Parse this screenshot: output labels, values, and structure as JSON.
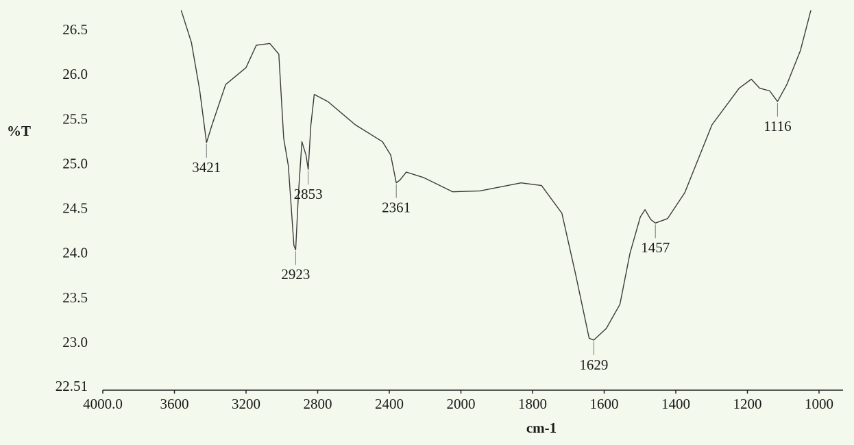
{
  "chart_data": {
    "type": "line",
    "ylabel": "%T",
    "xlabel": "cm-1",
    "x_break": 2000,
    "xlim": [
      4000,
      933
    ],
    "ylim": [
      22.51,
      26.77
    ],
    "xticks": [
      {
        "value": 4000,
        "label": "4000.0"
      },
      3600,
      3200,
      2800,
      2400,
      2000,
      1800,
      1600,
      1400,
      1200,
      1000
    ],
    "yticks": [
      22.51,
      {
        "value": 23,
        "label": "23.0"
      },
      23.5,
      {
        "value": 24,
        "label": "24.0"
      },
      24.5,
      {
        "value": 25,
        "label": "25.0"
      },
      25.5,
      {
        "value": 26,
        "label": "26.0"
      },
      26.5
    ],
    "color": "#3a3a3a",
    "x": [
      3562,
      3505,
      3459,
      3421,
      3390,
      3314,
      3200,
      3143,
      3067,
      3017,
      2990,
      2964,
      2933,
      2923,
      2907,
      2888,
      2865,
      2853,
      2838,
      2819,
      2743,
      2590,
      2438,
      2392,
      2361,
      2341,
      2305,
      2210,
      2046,
      1947,
      1832,
      1775,
      1718,
      1680,
      1642,
      1629,
      1594,
      1556,
      1528,
      1499,
      1486,
      1470,
      1457,
      1423,
      1375,
      1299,
      1223,
      1189,
      1166,
      1138,
      1116,
      1090,
      1052,
      1023
    ],
    "values": [
      26.73,
      26.37,
      25.84,
      25.25,
      25.45,
      25.9,
      26.09,
      26.34,
      26.36,
      26.24,
      25.3,
      24.99,
      24.1,
      24.05,
      24.69,
      25.26,
      25.11,
      24.95,
      25.45,
      25.79,
      25.71,
      25.45,
      25.26,
      25.11,
      24.8,
      24.83,
      24.92,
      24.86,
      24.7,
      24.71,
      24.8,
      24.77,
      24.46,
      23.78,
      23.06,
      23.04,
      23.17,
      23.44,
      24.01,
      24.42,
      24.5,
      24.39,
      24.35,
      24.4,
      24.69,
      25.45,
      25.86,
      25.96,
      25.86,
      25.83,
      25.71,
      25.9,
      26.28,
      26.73
    ],
    "peaks": [
      {
        "x": 3421,
        "y": 25.25
      },
      {
        "x": 2923,
        "y": 24.05
      },
      {
        "x": 2853,
        "y": 24.95
      },
      {
        "x": 2361,
        "y": 24.8
      },
      {
        "x": 1629,
        "y": 23.04
      },
      {
        "x": 1457,
        "y": 24.35
      },
      {
        "x": 1116,
        "y": 25.71
      }
    ]
  }
}
